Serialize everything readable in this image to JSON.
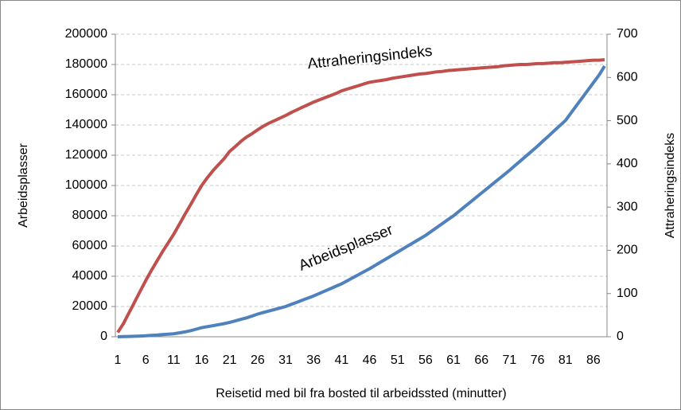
{
  "chart_data": {
    "type": "line",
    "x_label": "Reisetid med bil fra bosted til arbeidssted (minutter)",
    "y_label": "Arbeidsplasser",
    "y2_label": "Attraheringsindeks",
    "annotations": [
      "Attraheringsindeks",
      "Arbeidsplasser"
    ],
    "categories": [
      "1",
      null,
      null,
      null,
      null,
      "6",
      null,
      null,
      null,
      null,
      "11",
      null,
      null,
      null,
      null,
      "16",
      null,
      null,
      null,
      null,
      "21",
      null,
      null,
      null,
      null,
      "26",
      null,
      null,
      null,
      null,
      "31",
      null,
      null,
      null,
      null,
      "36",
      null,
      null,
      null,
      null,
      "41",
      null,
      null,
      null,
      null,
      "46",
      null,
      null,
      null,
      null,
      "51",
      null,
      null,
      null,
      null,
      "56",
      null,
      null,
      null,
      null,
      "61",
      null,
      null,
      null,
      null,
      "66",
      null,
      null,
      null,
      null,
      "71",
      null,
      null,
      null,
      null,
      "76",
      null,
      null,
      null,
      null,
      "81",
      null,
      null,
      null,
      null,
      "86",
      null,
      null
    ],
    "series": [
      {
        "name": "Arbeidsplasser",
        "color": "#4f81bd",
        "axis": "y",
        "values": [
          0,
          100,
          200,
          300,
          500,
          700,
          900,
          1100,
          1400,
          1700,
          2000,
          2600,
          3200,
          4000,
          5000,
          6000,
          6700,
          7300,
          8000,
          8700,
          9500,
          10500,
          11500,
          12500,
          13700,
          15000,
          16000,
          17000,
          18000,
          19000,
          20000,
          21400,
          22800,
          24200,
          25600,
          27000,
          28600,
          30200,
          31800,
          33400,
          35000,
          37000,
          39000,
          41000,
          43000,
          45000,
          47200,
          49400,
          51600,
          53800,
          56000,
          58200,
          60400,
          62600,
          64800,
          67000,
          69600,
          72200,
          74800,
          77400,
          80000,
          83000,
          86000,
          89000,
          92000,
          95000,
          98000,
          101000,
          104000,
          107000,
          110000,
          113200,
          116400,
          119600,
          122800,
          126000,
          129400,
          132800,
          136200,
          139600,
          143000,
          148000,
          153000,
          158000,
          163000,
          168000,
          173000,
          179000
        ]
      },
      {
        "name": "Attraheringsindeks",
        "color": "#c0504d",
        "axis": "y2",
        "values": [
          10,
          30,
          55,
          80,
          105,
          130,
          153,
          175,
          197,
          217,
          237,
          260,
          283,
          305,
          328,
          350,
          368,
          384,
          398,
          412,
          429,
          440,
          452,
          462,
          470,
          479,
          487,
          494,
          500,
          506,
          512,
          519,
          525,
          531,
          537,
          543,
          548,
          553,
          558,
          563,
          569,
          573,
          577,
          581,
          585,
          589,
          591,
          593,
          595,
          598,
          600,
          602,
          604,
          606,
          608,
          609,
          611,
          613,
          614,
          616,
          617,
          618,
          619,
          620,
          621,
          622,
          623,
          624,
          625,
          627,
          628,
          629,
          630,
          630,
          631,
          632,
          632,
          633,
          634,
          634,
          635,
          636,
          637,
          638,
          639,
          640,
          640,
          641
        ]
      }
    ],
    "ylim": [
      0,
      200000
    ],
    "yticks": [
      0,
      20000,
      40000,
      60000,
      80000,
      100000,
      120000,
      140000,
      160000,
      180000,
      200000
    ],
    "y2lim": [
      0,
      700
    ],
    "y2ticks": [
      0,
      100,
      200,
      300,
      400,
      500,
      600,
      700
    ],
    "grid": true
  }
}
